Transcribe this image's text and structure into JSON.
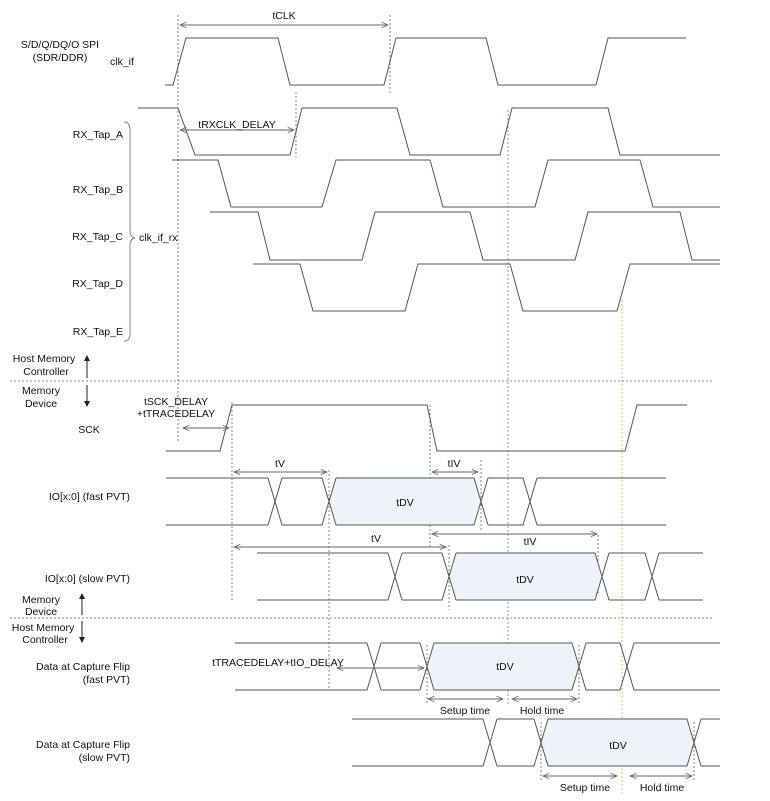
{
  "labels": {
    "mode_line1": "S/D/Q/DQ/O SPI",
    "mode_line2": "(SDR/DDR)",
    "clk_if": "clk_if",
    "rx_taps": [
      "RX_Tap_A",
      "RX_Tap_B",
      "RX_Tap_C",
      "RX_Tap_D",
      "RX_Tap_E"
    ],
    "clk_if_rx": "clk_if_rx",
    "host_line1": "Host Memory",
    "host_line2": "Controller",
    "device_line1": "Memory",
    "device_line2": "Device",
    "sck": "SCK",
    "io_fast": "IO[x:0] (fast PVT)",
    "io_slow": "IO[x:0] (slow PVT)",
    "capture_line1": "Data at Capture Flip",
    "capture_fast_line2": "(fast PVT)",
    "capture_slow_line2": "(slow PVT)"
  },
  "timing": {
    "tclk": "tCLK",
    "trxclk_delay": "tRXCLK_DELAY",
    "tsck_line1": "tSCK_DELAY",
    "tsck_line2": "+tTRACEDELAY",
    "tv": "tV",
    "tiv": "tIV",
    "tdv": "tDV",
    "ttrace_io": "tTRACEDELAY+tIO_DELAY",
    "setup": "Setup time",
    "hold": "Hold time"
  },
  "colors": {
    "valid_fill": "#eef3f9",
    "capture_fast_marker": "#3aa35a",
    "capture_slow_marker": "#f0a040",
    "waveform": "#555555"
  }
}
